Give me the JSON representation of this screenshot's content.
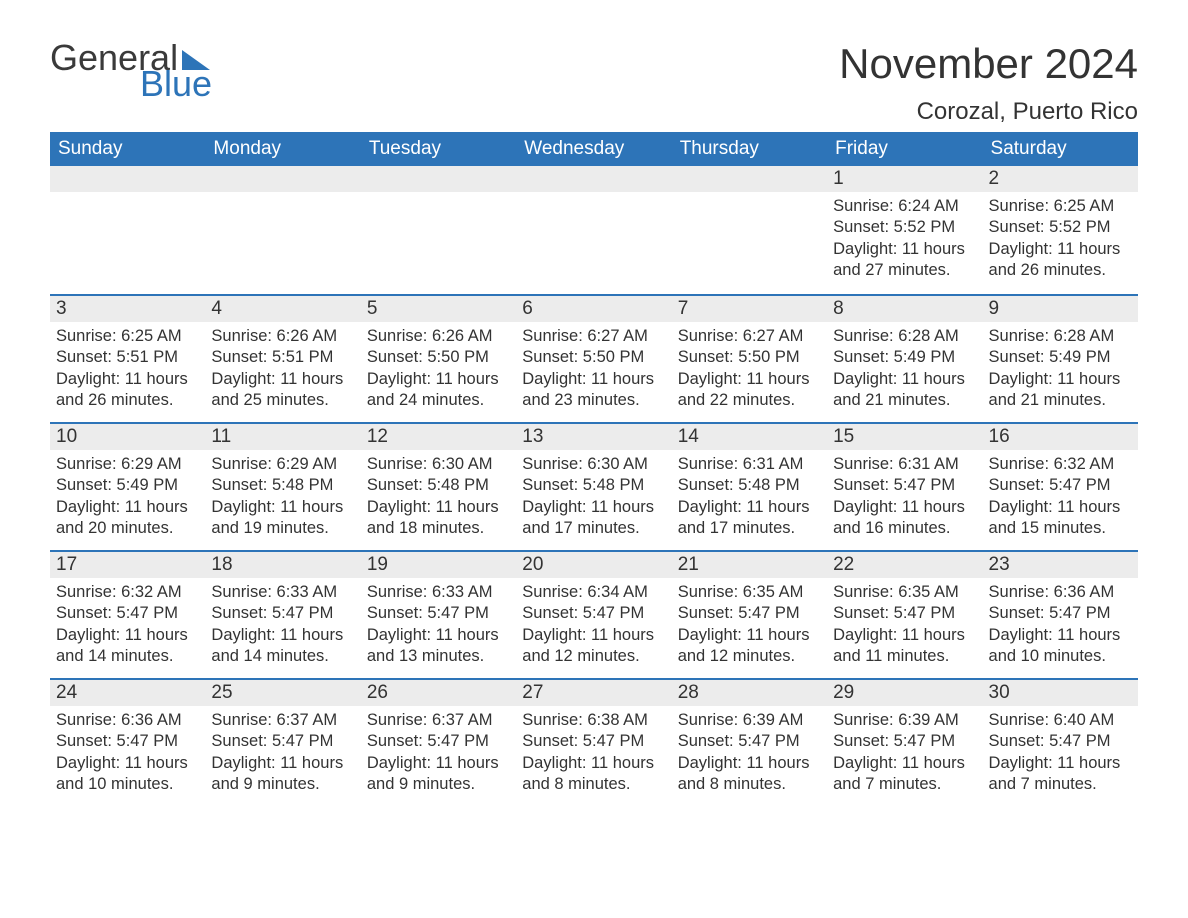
{
  "colors": {
    "brand_blue": "#2d74b8",
    "text": "#333333",
    "daynum_bg": "#ececec",
    "page_bg": "#ffffff",
    "header_text": "#ffffff"
  },
  "typography": {
    "title_fontsize": 42,
    "location_fontsize": 24,
    "dow_fontsize": 19,
    "daynum_fontsize": 19,
    "body_fontsize": 16.5,
    "font_family": "Arial"
  },
  "logo": {
    "word1": "General",
    "word2": "Blue",
    "triangle_color": "#2d74b8"
  },
  "title": "November 2024",
  "location": "Corozal, Puerto Rico",
  "days_of_week": [
    "Sunday",
    "Monday",
    "Tuesday",
    "Wednesday",
    "Thursday",
    "Friday",
    "Saturday"
  ],
  "label_sunrise": "Sunrise: ",
  "label_sunset": "Sunset: ",
  "label_daylight_prefix": "Daylight: ",
  "weeks": [
    [
      {
        "empty": true
      },
      {
        "empty": true
      },
      {
        "empty": true
      },
      {
        "empty": true
      },
      {
        "empty": true
      },
      {
        "num": "1",
        "sunrise": "6:24 AM",
        "sunset": "5:52 PM",
        "daylight": "11 hours and 27 minutes."
      },
      {
        "num": "2",
        "sunrise": "6:25 AM",
        "sunset": "5:52 PM",
        "daylight": "11 hours and 26 minutes."
      }
    ],
    [
      {
        "num": "3",
        "sunrise": "6:25 AM",
        "sunset": "5:51 PM",
        "daylight": "11 hours and 26 minutes."
      },
      {
        "num": "4",
        "sunrise": "6:26 AM",
        "sunset": "5:51 PM",
        "daylight": "11 hours and 25 minutes."
      },
      {
        "num": "5",
        "sunrise": "6:26 AM",
        "sunset": "5:50 PM",
        "daylight": "11 hours and 24 minutes."
      },
      {
        "num": "6",
        "sunrise": "6:27 AM",
        "sunset": "5:50 PM",
        "daylight": "11 hours and 23 minutes."
      },
      {
        "num": "7",
        "sunrise": "6:27 AM",
        "sunset": "5:50 PM",
        "daylight": "11 hours and 22 minutes."
      },
      {
        "num": "8",
        "sunrise": "6:28 AM",
        "sunset": "5:49 PM",
        "daylight": "11 hours and 21 minutes."
      },
      {
        "num": "9",
        "sunrise": "6:28 AM",
        "sunset": "5:49 PM",
        "daylight": "11 hours and 21 minutes."
      }
    ],
    [
      {
        "num": "10",
        "sunrise": "6:29 AM",
        "sunset": "5:49 PM",
        "daylight": "11 hours and 20 minutes."
      },
      {
        "num": "11",
        "sunrise": "6:29 AM",
        "sunset": "5:48 PM",
        "daylight": "11 hours and 19 minutes."
      },
      {
        "num": "12",
        "sunrise": "6:30 AM",
        "sunset": "5:48 PM",
        "daylight": "11 hours and 18 minutes."
      },
      {
        "num": "13",
        "sunrise": "6:30 AM",
        "sunset": "5:48 PM",
        "daylight": "11 hours and 17 minutes."
      },
      {
        "num": "14",
        "sunrise": "6:31 AM",
        "sunset": "5:48 PM",
        "daylight": "11 hours and 17 minutes."
      },
      {
        "num": "15",
        "sunrise": "6:31 AM",
        "sunset": "5:47 PM",
        "daylight": "11 hours and 16 minutes."
      },
      {
        "num": "16",
        "sunrise": "6:32 AM",
        "sunset": "5:47 PM",
        "daylight": "11 hours and 15 minutes."
      }
    ],
    [
      {
        "num": "17",
        "sunrise": "6:32 AM",
        "sunset": "5:47 PM",
        "daylight": "11 hours and 14 minutes."
      },
      {
        "num": "18",
        "sunrise": "6:33 AM",
        "sunset": "5:47 PM",
        "daylight": "11 hours and 14 minutes."
      },
      {
        "num": "19",
        "sunrise": "6:33 AM",
        "sunset": "5:47 PM",
        "daylight": "11 hours and 13 minutes."
      },
      {
        "num": "20",
        "sunrise": "6:34 AM",
        "sunset": "5:47 PM",
        "daylight": "11 hours and 12 minutes."
      },
      {
        "num": "21",
        "sunrise": "6:35 AM",
        "sunset": "5:47 PM",
        "daylight": "11 hours and 12 minutes."
      },
      {
        "num": "22",
        "sunrise": "6:35 AM",
        "sunset": "5:47 PM",
        "daylight": "11 hours and 11 minutes."
      },
      {
        "num": "23",
        "sunrise": "6:36 AM",
        "sunset": "5:47 PM",
        "daylight": "11 hours and 10 minutes."
      }
    ],
    [
      {
        "num": "24",
        "sunrise": "6:36 AM",
        "sunset": "5:47 PM",
        "daylight": "11 hours and 10 minutes."
      },
      {
        "num": "25",
        "sunrise": "6:37 AM",
        "sunset": "5:47 PM",
        "daylight": "11 hours and 9 minutes."
      },
      {
        "num": "26",
        "sunrise": "6:37 AM",
        "sunset": "5:47 PM",
        "daylight": "11 hours and 9 minutes."
      },
      {
        "num": "27",
        "sunrise": "6:38 AM",
        "sunset": "5:47 PM",
        "daylight": "11 hours and 8 minutes."
      },
      {
        "num": "28",
        "sunrise": "6:39 AM",
        "sunset": "5:47 PM",
        "daylight": "11 hours and 8 minutes."
      },
      {
        "num": "29",
        "sunrise": "6:39 AM",
        "sunset": "5:47 PM",
        "daylight": "11 hours and 7 minutes."
      },
      {
        "num": "30",
        "sunrise": "6:40 AM",
        "sunset": "5:47 PM",
        "daylight": "11 hours and 7 minutes."
      }
    ]
  ]
}
